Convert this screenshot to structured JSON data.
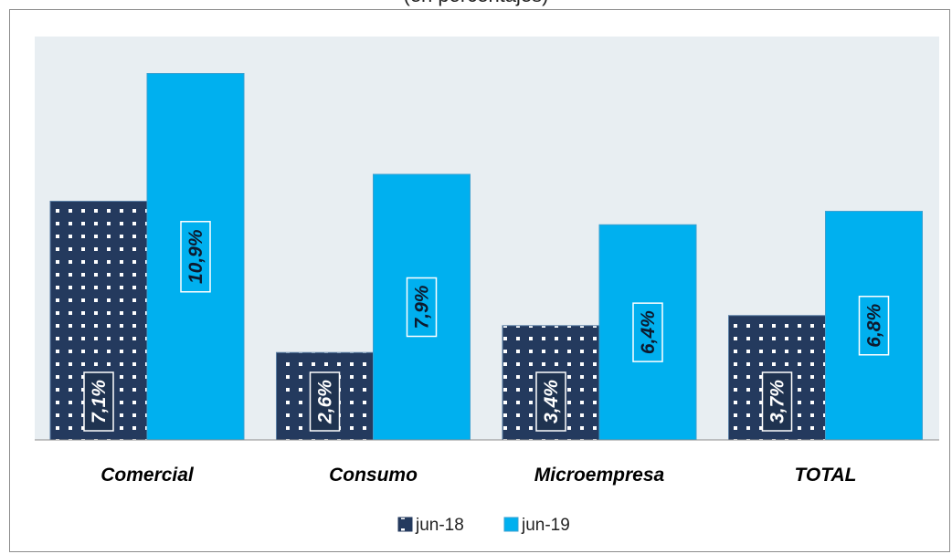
{
  "chart_data": {
    "type": "bar",
    "title": "(en porcentajes)",
    "categories": [
      "Comercial",
      "Consumo",
      "Microempresa",
      "TOTAL"
    ],
    "series": [
      {
        "name": "jun-18",
        "values": [
          7.1,
          2.6,
          3.4,
          3.7
        ],
        "labels": [
          "7,1%",
          "2,6%",
          "3,4%",
          "3,7%"
        ],
        "color": "#243a5e"
      },
      {
        "name": "jun-19",
        "values": [
          10.9,
          7.9,
          6.4,
          6.8
        ],
        "labels": [
          "10,9%",
          "7,9%",
          "6,4%",
          "6,8%"
        ],
        "color": "#00b0ef"
      }
    ],
    "ylim": [
      0,
      12
    ],
    "plot_background": "#e8eef2",
    "legend_position": "bottom",
    "grid": false
  }
}
